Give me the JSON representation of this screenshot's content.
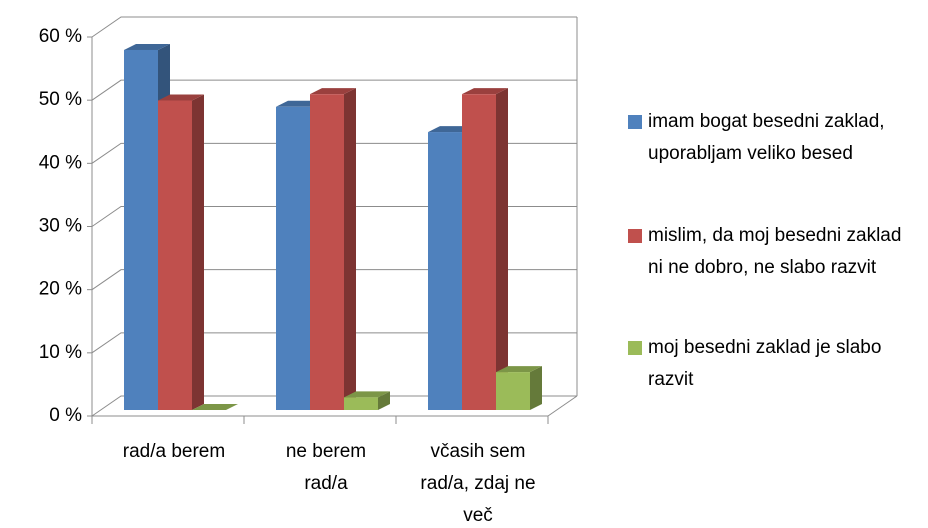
{
  "chart_data": {
    "type": "bar3d",
    "categories": [
      "rad/a berem",
      "ne berem rad/a",
      "včasih sem rad/a, zdaj ne več"
    ],
    "series": [
      {
        "name": "imam bogat besedni zaklad, uporabljam veliko besed",
        "color": "#4f81bd",
        "values": [
          57,
          48,
          44
        ]
      },
      {
        "name": "mislim, da moj besedni zaklad ni ne dobro, ne slabo razvit",
        "color": "#c0504d",
        "values": [
          49,
          50,
          50
        ]
      },
      {
        "name": "moj besedni zaklad je slabo razvit",
        "color": "#9bbb59",
        "values": [
          0,
          2,
          6
        ]
      }
    ],
    "ylim": [
      0,
      60
    ],
    "yticks": [
      {
        "value": 0,
        "label": "0 %"
      },
      {
        "value": 10,
        "label": "10 %"
      },
      {
        "value": 20,
        "label": "20 %"
      },
      {
        "value": 30,
        "label": "30 %"
      },
      {
        "value": 40,
        "label": "40 %"
      },
      {
        "value": 50,
        "label": "50 %"
      },
      {
        "value": 60,
        "label": "60 %"
      }
    ],
    "grid": true,
    "legend": "right"
  }
}
